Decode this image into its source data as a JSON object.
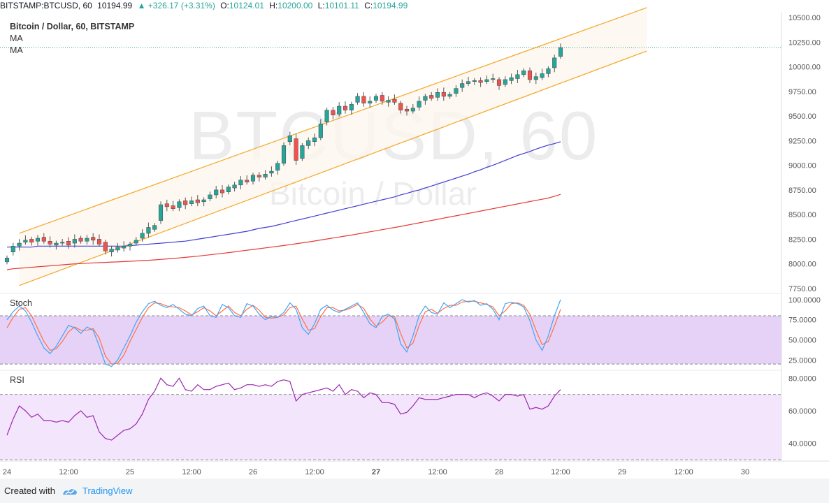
{
  "header": {
    "symbol": "BITSTAMP:BTCUSD, 60",
    "last": "10194.99",
    "change": "▲ +326.17 (+3.31%)",
    "o_label": "O:",
    "o": "10124.01",
    "h_label": "H:",
    "h": "10200.00",
    "l_label": "L:",
    "l": "10101.11",
    "c_label": "C:",
    "c": "10194.99"
  },
  "legend": {
    "title": "Bitcoin / Dollar, 60, BITSTAMP",
    "ma1": "MA",
    "ma2": "MA"
  },
  "watermark": {
    "line1": "BTCUSD, 60",
    "line2": "Bitcoin / Dollar"
  },
  "panes": {
    "stoch_label": "Stoch",
    "rsi_label": "RSI"
  },
  "footer": {
    "created_with": "Created with",
    "brand": "TradingView"
  },
  "colors": {
    "up": "#26a69a",
    "down": "#ef5350",
    "channel": "#f5a623",
    "ma_fast": "#3f3fd4",
    "ma_slow": "#e53935",
    "stoch_k": "#42a5f5",
    "stoch_d": "#ff7043",
    "rsi": "#9c27b0"
  },
  "chart_data": [
    {
      "type": "candlestick",
      "title": "Bitcoin / Dollar, 60, BITSTAMP",
      "ylim": [
        7700,
        10550
      ],
      "y_ticks": [
        "10500.00",
        "10250.00",
        "10000.00",
        "9750.00",
        "9500.00",
        "9250.00",
        "9000.00",
        "8750.00",
        "8500.00",
        "8250.00",
        "8000.00",
        "7750.00"
      ],
      "y_tick_values": [
        10500,
        10250,
        10000,
        9750,
        9500,
        9250,
        9000,
        8750,
        8500,
        8250,
        8000,
        7750
      ],
      "x_ticks": [
        "24",
        "12:00",
        "25",
        "12:00",
        "26",
        "12:00",
        "27",
        "12:00",
        "28",
        "12:00",
        "29",
        "12:00",
        "30"
      ],
      "x_tick_bars": [
        0,
        10,
        20,
        30,
        40,
        50,
        60,
        70,
        80,
        90,
        100,
        110,
        120
      ],
      "current_price": 10194.99,
      "closes": [
        8060,
        8180,
        8210,
        8240,
        8220,
        8260,
        8230,
        8200,
        8210,
        8220,
        8190,
        8250,
        8230,
        8260,
        8240,
        8200,
        8130,
        8150,
        8170,
        8180,
        8200,
        8240,
        8310,
        8370,
        8390,
        8600,
        8580,
        8560,
        8630,
        8600,
        8640,
        8620,
        8650,
        8700,
        8750,
        8720,
        8780,
        8800,
        8850,
        8830,
        8900,
        8880,
        8910,
        8940,
        9020,
        9200,
        9300,
        9050,
        9200,
        9250,
        9280,
        9420,
        9560,
        9510,
        9600,
        9560,
        9620,
        9700,
        9630,
        9650,
        9700,
        9650,
        9660,
        9640,
        9560,
        9550,
        9580,
        9650,
        9700,
        9680,
        9740,
        9700,
        9720,
        9780,
        9830,
        9850,
        9860,
        9840,
        9870,
        9880,
        9810,
        9870,
        9890,
        9920,
        9960,
        9870,
        9900,
        9930,
        9980,
        10090,
        10195
      ],
      "opens_offset": [
        -40,
        -60,
        -30,
        -20,
        30,
        -30,
        40,
        30,
        -20,
        -10,
        40,
        -40,
        30,
        -30,
        30,
        50,
        90,
        -30,
        -30,
        -20,
        -20,
        -30,
        -50,
        -60,
        -40,
        -160,
        30,
        30,
        -60,
        40,
        -30,
        30,
        -20,
        -40,
        -50,
        30,
        -50,
        -30,
        -50,
        20,
        -60,
        20,
        -30,
        -20,
        -70,
        -180,
        -60,
        220,
        -130,
        -50,
        -40,
        -140,
        -120,
        50,
        -80,
        40,
        -60,
        -60,
        70,
        -20,
        -40,
        60,
        -20,
        30,
        70,
        20,
        -30,
        -60,
        -40,
        30,
        -50,
        40,
        -20,
        -50,
        -40,
        -20,
        -10,
        20,
        -20,
        -10,
        60,
        -50,
        -30,
        -40,
        -40,
        90,
        -30,
        -40,
        -50,
        -100,
        -90
      ],
      "ma_fast": [
        8170,
        8170,
        8170,
        8170,
        8170,
        8180,
        8180,
        8180,
        8180,
        8180,
        8180,
        8180,
        8180,
        8180,
        8180,
        8180,
        8180,
        8180,
        8180,
        8180,
        8185,
        8190,
        8195,
        8200,
        8205,
        8210,
        8215,
        8220,
        8225,
        8230,
        8240,
        8250,
        8260,
        8270,
        8280,
        8290,
        8300,
        8310,
        8320,
        8330,
        8345,
        8360,
        8370,
        8380,
        8395,
        8410,
        8425,
        8440,
        8455,
        8470,
        8485,
        8500,
        8515,
        8530,
        8545,
        8560,
        8575,
        8590,
        8605,
        8620,
        8635,
        8650,
        8665,
        8680,
        8700,
        8715,
        8735,
        8750,
        8770,
        8790,
        8810,
        8830,
        8850,
        8870,
        8890,
        8910,
        8935,
        8955,
        8980,
        9000,
        9025,
        9050,
        9075,
        9100,
        9120,
        9140,
        9165,
        9185,
        9205,
        9220,
        9240
      ],
      "ma_slow": [
        7940,
        7950,
        7955,
        7960,
        7965,
        7970,
        7975,
        7980,
        7985,
        7990,
        7995,
        8000,
        8003,
        8006,
        8010,
        8012,
        8015,
        8018,
        8020,
        8023,
        8026,
        8030,
        8033,
        8036,
        8040,
        8045,
        8050,
        8055,
        8060,
        8066,
        8072,
        8078,
        8085,
        8092,
        8099,
        8106,
        8114,
        8122,
        8130,
        8138,
        8146,
        8154,
        8162,
        8170,
        8178,
        8186,
        8195,
        8204,
        8213,
        8222,
        8232,
        8242,
        8252,
        8262,
        8272,
        8282,
        8292,
        8303,
        8314,
        8325,
        8336,
        8347,
        8358,
        8369,
        8380,
        8392,
        8404,
        8416,
        8428,
        8440,
        8452,
        8464,
        8476,
        8488,
        8500,
        8512,
        8524,
        8536,
        8548,
        8560,
        8572,
        8584,
        8596,
        8608,
        8620,
        8632,
        8644,
        8656,
        8668,
        8686,
        8705
      ],
      "channel": {
        "upper": [
          [
            2,
            8310
          ],
          [
            104,
            10600
          ]
        ],
        "lower": [
          [
            2,
            7780
          ],
          [
            104,
            10160
          ]
        ]
      }
    },
    {
      "type": "line",
      "title": "Stoch",
      "ylim": [
        14,
        106
      ],
      "y_ticks": [
        "100.0000",
        "75.0000",
        "50.0000",
        "25.0000"
      ],
      "y_tick_values": [
        100,
        75,
        50,
        25
      ],
      "bands": [
        80,
        20
      ],
      "series": [
        {
          "values": [
            75,
            85,
            92,
            86,
            72,
            55,
            40,
            33,
            42,
            55,
            68,
            65,
            58,
            66,
            62,
            42,
            20,
            17,
            25,
            40,
            55,
            72,
            85,
            95,
            98,
            93,
            90,
            94,
            88,
            82,
            80,
            89,
            92,
            80,
            78,
            94,
            90,
            80,
            78,
            95,
            92,
            82,
            75,
            79,
            78,
            84,
            96,
            88,
            65,
            57,
            70,
            88,
            93,
            87,
            84,
            88,
            92,
            96,
            84,
            70,
            65,
            79,
            82,
            76,
            45,
            35,
            55,
            80,
            92,
            84,
            82,
            96,
            90,
            95,
            100,
            97,
            99,
            93,
            95,
            88,
            75,
            95,
            97,
            95,
            91,
            74,
            50,
            37,
            55,
            80,
            100
          ]
        },
        {
          "values": [
            65,
            78,
            88,
            90,
            80,
            64,
            48,
            37,
            39,
            48,
            60,
            66,
            62,
            62,
            64,
            52,
            30,
            20,
            21,
            31,
            48,
            63,
            78,
            90,
            96,
            95,
            92,
            91,
            90,
            86,
            81,
            85,
            90,
            86,
            80,
            86,
            92,
            84,
            80,
            88,
            93,
            87,
            78,
            77,
            78,
            81,
            90,
            92,
            76,
            62,
            64,
            79,
            90,
            90,
            86,
            87,
            90,
            94,
            89,
            76,
            67,
            72,
            80,
            79,
            58,
            40,
            46,
            68,
            85,
            88,
            83,
            89,
            93,
            93,
            97,
            98,
            98,
            96,
            94,
            91,
            80,
            86,
            95,
            96,
            93,
            82,
            62,
            44,
            48,
            67,
            88
          ]
        }
      ]
    },
    {
      "type": "line",
      "title": "RSI",
      "ylim": [
        30,
        84
      ],
      "y_ticks": [
        "80.0000",
        "60.0000",
        "40.0000"
      ],
      "y_tick_values": [
        80,
        60,
        40
      ],
      "bands": [
        70,
        30
      ],
      "series": [
        {
          "values": [
            45,
            55,
            63,
            60,
            56,
            58,
            54,
            54,
            53,
            54,
            53,
            57,
            60,
            56,
            57,
            47,
            43,
            42,
            45,
            48,
            49,
            52,
            58,
            67,
            72,
            80,
            76,
            75,
            80,
            73,
            72,
            76,
            73,
            73,
            75,
            76,
            77,
            73,
            74,
            76,
            76,
            75,
            76,
            75,
            78,
            79,
            78,
            66,
            70,
            71,
            72,
            73,
            74,
            72,
            76,
            70,
            73,
            72,
            68,
            71,
            70,
            65,
            65,
            64,
            58,
            59,
            63,
            68,
            67,
            67,
            67,
            68,
            69,
            70,
            70,
            70,
            68,
            70,
            71,
            69,
            66,
            70,
            70,
            69,
            70,
            61,
            62,
            61,
            63,
            69,
            73
          ]
        }
      ]
    }
  ]
}
